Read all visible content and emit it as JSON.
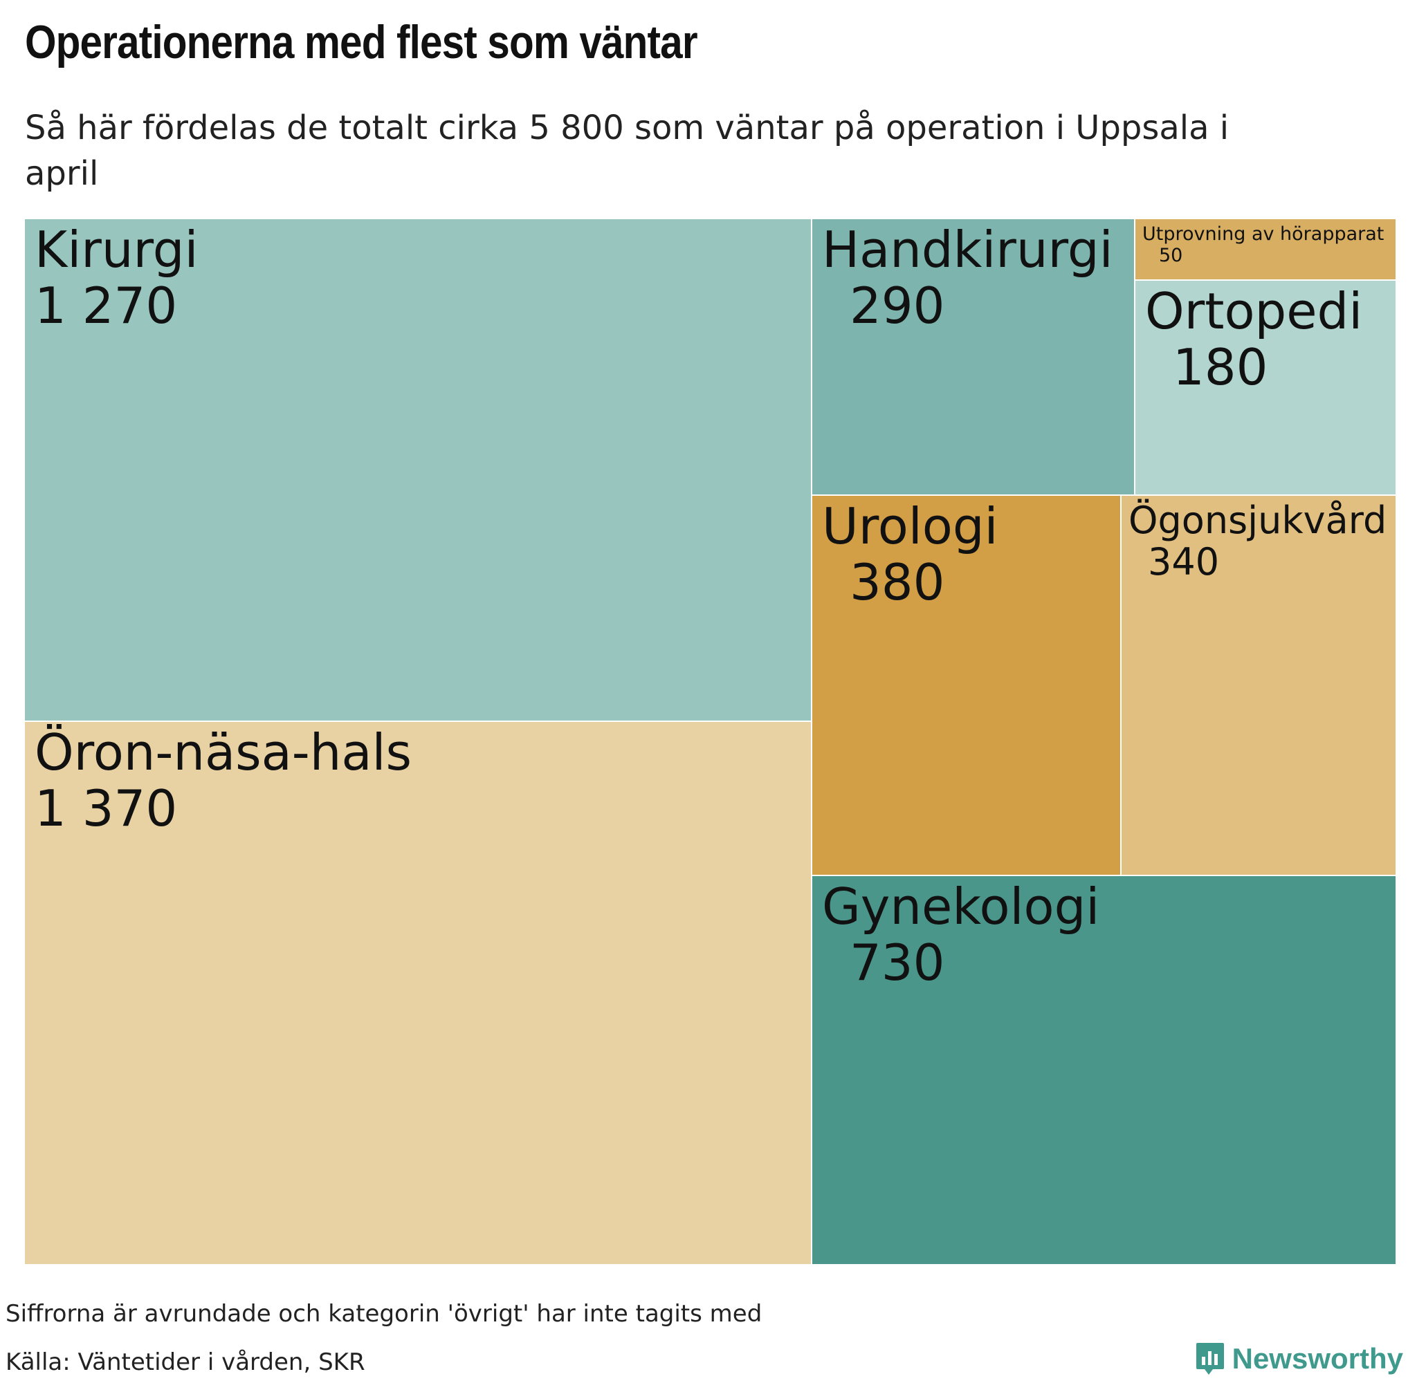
{
  "title": "Operationerna med flest som väntar",
  "subtitle": "Så här fördelas de totalt cirka 5 800 som väntar på operation i Uppsala i april",
  "footer": {
    "note": "Siffrorna är avrundade och kategorin 'övrigt' har inte tagits med",
    "source": "Källa: Väntetider i vården, SKR",
    "brand": "Newsworthy",
    "brand_color": "#3f9a8d"
  },
  "chart_data": {
    "type": "treemap",
    "items": [
      {
        "label": "Kirurgi",
        "value_text": "1 270",
        "value": 1270,
        "color": "#98c5be"
      },
      {
        "label": "Öron-näsa-hals",
        "value_text": "1 370",
        "value": 1370,
        "color": "#e8d1a2"
      },
      {
        "label": "Handkirurgi",
        "value_text": "290",
        "value": 290,
        "color": "#7db4ad"
      },
      {
        "label": "Utprovning av hörapparat",
        "value_text": "50",
        "value": 50,
        "color": "#d8ae62"
      },
      {
        "label": "Ortopedi",
        "value_text": "180",
        "value": 180,
        "color": "#b2d6cf"
      },
      {
        "label": "Urologi",
        "value_text": "380",
        "value": 380,
        "color": "#d29e46"
      },
      {
        "label": "Ögonsjukvård",
        "value_text": "340",
        "value": 340,
        "color": "#e1bf80"
      },
      {
        "label": "Gynekologi",
        "value_text": "730",
        "value": 730,
        "color": "#4a968a"
      }
    ]
  }
}
